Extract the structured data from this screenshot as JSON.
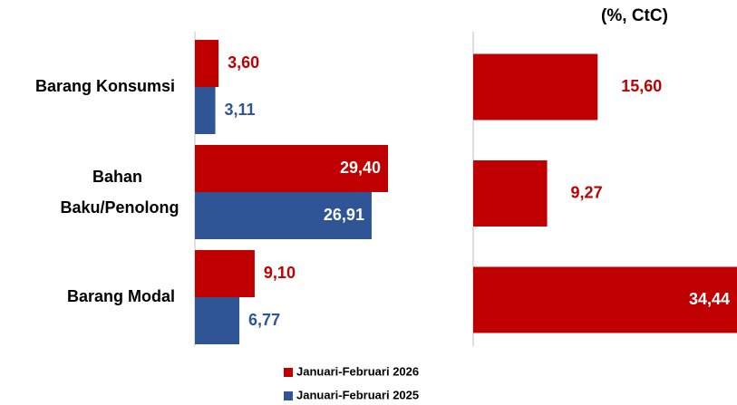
{
  "chart_data": [
    {
      "type": "bar",
      "orientation": "horizontal",
      "categories": [
        "Barang Konsumsi",
        "Bahan Baku/Penolong",
        "Barang Modal"
      ],
      "series": [
        {
          "name": "Januari-Februari 2026",
          "color": "#c00000",
          "values": [
            3.6,
            29.4,
            9.1
          ],
          "value_labels": [
            "3,60",
            "29,40",
            "9,10"
          ]
        },
        {
          "name": "Januari-Februari 2025",
          "color": "#2f5597",
          "values": [
            3.11,
            26.91,
            6.77
          ],
          "value_labels": [
            "3,11",
            "26,91",
            "6,77"
          ]
        }
      ]
    },
    {
      "type": "bar",
      "orientation": "horizontal",
      "title": "(%, CtC)",
      "color": "#c00000",
      "values": [
        15.6,
        9.27,
        34.44
      ],
      "value_labels": [
        "15,60",
        "9,27",
        "34,44"
      ]
    }
  ]
}
